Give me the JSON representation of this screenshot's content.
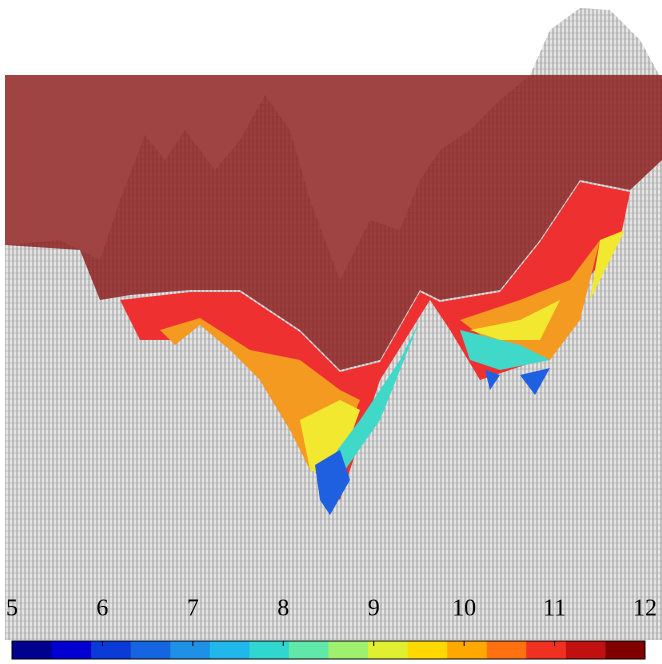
{
  "chart_data": {
    "type": "surface",
    "colorbar": {
      "lim": [
        5,
        12
      ],
      "ticks": [
        5,
        6,
        7,
        8,
        9,
        10,
        11,
        12
      ],
      "colors": [
        "#00008f",
        "#0000d0",
        "#0a3ad8",
        "#1565e0",
        "#1e90e6",
        "#20b8ea",
        "#30d6d0",
        "#60e8a8",
        "#a0f070",
        "#e0f030",
        "#ffd800",
        "#ffa800",
        "#ff7010",
        "#f03020",
        "#c01010",
        "#800000"
      ]
    }
  }
}
